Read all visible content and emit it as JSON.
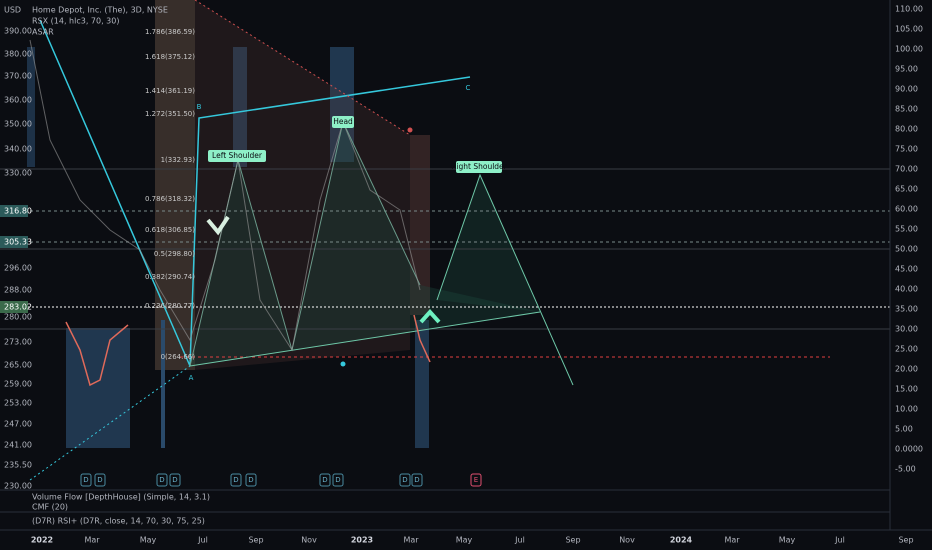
{
  "header": {
    "currency": "USD",
    "symbol": "Home Depot, Inc. (The), 3D, NYSE",
    "indicator_1": "RSX (14, hlc3, 70, 30)",
    "indicator_2": "ASAR"
  },
  "left_axis": [
    "390.00",
    "380.00",
    "370.00",
    "360.00",
    "350.00",
    "340.00",
    "330.00",
    "316.80",
    "305.33",
    "296.00",
    "288.00",
    "283.02",
    "280.00",
    "273.00",
    "265.00",
    "259.00",
    "253.00",
    "247.00",
    "241.00",
    "235.50",
    "230.00"
  ],
  "right_axis": [
    "110.00",
    "105.00",
    "100.00",
    "95.00",
    "90.00",
    "85.00",
    "80.00",
    "75.00",
    "70.00",
    "65.00",
    "60.00",
    "55.00",
    "50.00",
    "45.00",
    "40.00",
    "35.00",
    "30.00",
    "25.00",
    "20.00",
    "15.00",
    "10.00",
    "5.00",
    "0.0000",
    "-5.00"
  ],
  "time_axis": [
    "2022",
    "Mar",
    "May",
    "Jul",
    "Sep",
    "Nov",
    "2023",
    "Mar",
    "May",
    "Jul",
    "Sep",
    "Nov",
    "2024",
    "Mar",
    "May",
    "Jul",
    "Sep"
  ],
  "fib_levels": [
    "1.786(386.59)",
    "1.618(375.12)",
    "1.414(361.19)",
    "1.272(351.50)",
    "1(332.93)",
    "0.786(318.32)",
    "0.618(306.85)",
    "0.5(298.80)",
    "0.382(290.74)",
    "0.236(280.77)",
    "0(264.66)"
  ],
  "pattern_labels": [
    "Left Shoulder",
    "Head",
    "Right Shoulder"
  ],
  "points": [
    "A",
    "B",
    "C"
  ],
  "events": [
    "D",
    "D",
    "D",
    "D",
    "D",
    "D",
    "E"
  ],
  "panels": [
    "Volume Flow [DepthHouse] (Simple, 14, 3.1)",
    "CMF (20)",
    "(D7R) RSI+ (D7R, close, 14, 70, 30, 75, 25)"
  ]
}
